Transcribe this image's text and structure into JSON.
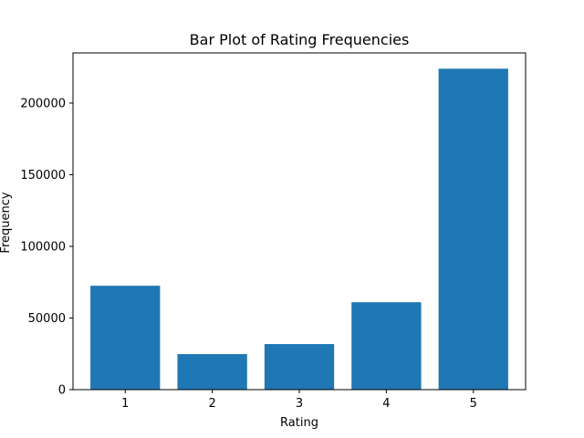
{
  "chart_data": {
    "type": "bar",
    "title": "Bar Plot of Rating Frequencies",
    "xlabel": "Rating",
    "ylabel": "Frequency",
    "categories": [
      "1",
      "2",
      "3",
      "4",
      "5"
    ],
    "values": [
      72500,
      24800,
      31800,
      61000,
      224000
    ],
    "ylim": [
      0,
      235000
    ],
    "yticks": [
      0,
      50000,
      100000,
      150000,
      200000
    ],
    "ytick_labels": [
      "0",
      "50000",
      "100000",
      "150000",
      "200000"
    ],
    "bar_color": "#1f77b4",
    "grid": false,
    "legend": "none"
  }
}
